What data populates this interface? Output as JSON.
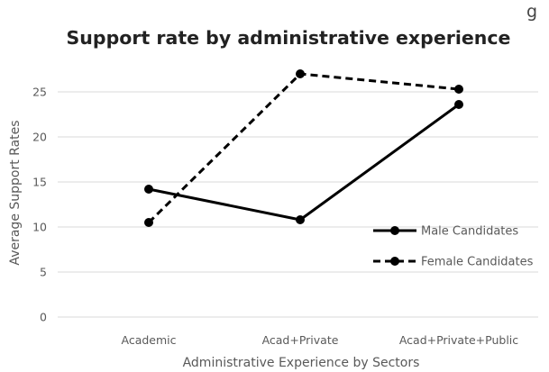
{
  "chart_data": {
    "type": "line",
    "title": "Support rate by administrative experience",
    "subtitle_fragment": "g",
    "xlabel": "Administrative Experience by Sectors",
    "ylabel": "Average Support Rates",
    "categories": [
      "Academic",
      "Acad+Private",
      "Acad+Private+Public"
    ],
    "ylim": [
      0,
      25
    ],
    "yticks": [
      0,
      5,
      10,
      15,
      20,
      25
    ],
    "grid": "horizontal",
    "legend_position": "right",
    "series": [
      {
        "name": "Male Candidates",
        "values": [
          14.2,
          10.8,
          23.6
        ],
        "style": "solid",
        "color": "#000000"
      },
      {
        "name": "Female Candidates",
        "values": [
          10.5,
          27.0,
          25.3
        ],
        "style": "dashed",
        "color": "#000000"
      }
    ]
  }
}
